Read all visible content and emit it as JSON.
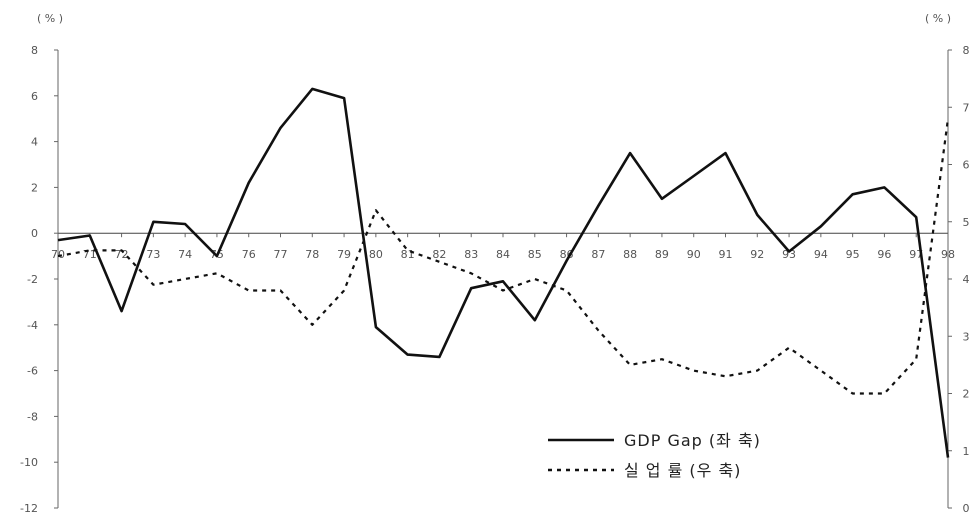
{
  "chart_data": {
    "type": "line",
    "categories": [
      "70",
      "71",
      "72",
      "73",
      "74",
      "75",
      "76",
      "77",
      "78",
      "79",
      "80",
      "81",
      "82",
      "83",
      "84",
      "85",
      "86",
      "87",
      "88",
      "89",
      "90",
      "91",
      "92",
      "93",
      "94",
      "95",
      "96",
      "97",
      "98"
    ],
    "y_left_label": "( % )",
    "y_right_label": "( % )",
    "y_left_lim": [
      -12,
      8
    ],
    "y_left_ticks": [
      "8",
      "6",
      "4",
      "2",
      "0",
      "-2",
      "-4",
      "-6",
      "-8",
      "-10",
      "-12"
    ],
    "y_right_lim": [
      0,
      8
    ],
    "y_right_ticks": [
      "8",
      "7",
      "6",
      "5",
      "4",
      "3",
      "2",
      "1",
      "0"
    ],
    "series": [
      {
        "name": "GDP Gap (좌축)",
        "axis": "left",
        "style": "solid",
        "values": [
          -0.3,
          -0.1,
          -3.4,
          0.5,
          0.4,
          -1.0,
          2.2,
          4.6,
          6.3,
          5.9,
          -4.1,
          -5.3,
          -5.4,
          -2.4,
          -2.1,
          -3.8,
          -1.2,
          1.2,
          3.5,
          1.5,
          2.5,
          3.5,
          0.8,
          -0.8,
          0.3,
          1.7,
          2.0,
          0.7,
          -9.8
        ]
      },
      {
        "name": "실 업 률 (우축)",
        "axis": "right",
        "style": "dotted",
        "values": [
          4.4,
          4.5,
          4.5,
          3.9,
          4.0,
          4.1,
          3.8,
          3.8,
          3.2,
          3.8,
          5.2,
          4.5,
          4.3,
          4.1,
          3.8,
          4.0,
          3.8,
          3.1,
          2.5,
          2.6,
          2.4,
          2.3,
          2.4,
          2.8,
          2.4,
          2.0,
          2.0,
          2.6,
          6.8
        ]
      }
    ],
    "legend": {
      "placement": "bottom-right",
      "gdp_label": "GDP Gap (좌 축)",
      "unemp_label": "실 업 률 (우 축)"
    },
    "colors": {
      "line": "#111111",
      "axis": "#666666",
      "zero": "#444444"
    }
  }
}
